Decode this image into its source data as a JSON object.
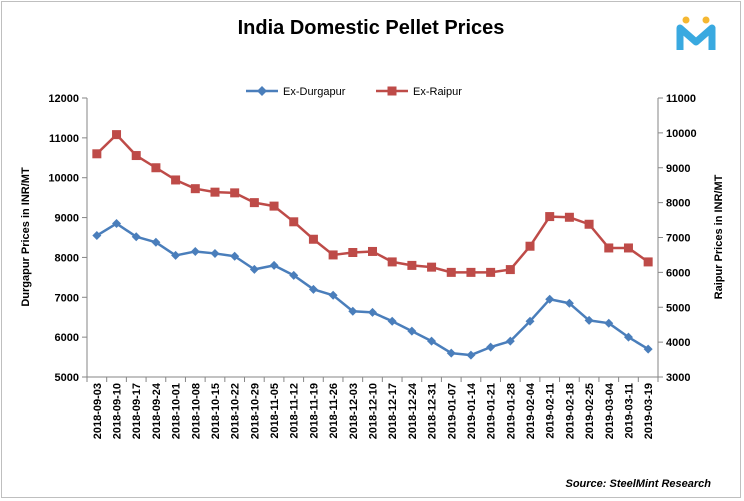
{
  "chart_data": {
    "type": "line",
    "title": "India Domestic Pellet Prices",
    "x": [
      "2018-09-03",
      "2018-09-10",
      "2018-09-17",
      "2018-09-24",
      "2018-10-01",
      "2018-10-08",
      "2018-10-15",
      "2018-10-22",
      "2018-10-29",
      "2018-11-05",
      "2018-11-12",
      "2018-11-19",
      "2018-11-26",
      "2018-12-03",
      "2018-12-10",
      "2018-12-17",
      "2018-12-24",
      "2018-12-31",
      "2019-01-07",
      "2019-01-14",
      "2019-01-21",
      "2019-01-28",
      "2019-02-04",
      "2019-02-11",
      "2019-02-18",
      "2019-02-25",
      "2019-03-04",
      "2019-03-11",
      "2019-03-19"
    ],
    "series": [
      {
        "name": "Ex-Durgapur",
        "axis": "left",
        "color": "#4a7ebb",
        "marker": "diamond",
        "values": [
          8550,
          8850,
          8520,
          8380,
          8050,
          8150,
          8100,
          8030,
          7700,
          7800,
          7550,
          7200,
          7050,
          6650,
          6620,
          6400,
          6150,
          5900,
          5600,
          5550,
          5750,
          5900,
          6400,
          6950,
          6850,
          6420,
          6350,
          6000,
          5700
        ]
      },
      {
        "name": "Ex-Raipur",
        "axis": "right",
        "color": "#be4b48",
        "marker": "square",
        "values": [
          9400,
          9950,
          9350,
          9000,
          8650,
          8400,
          8300,
          8280,
          8000,
          7900,
          7450,
          6950,
          6500,
          6570,
          6600,
          6300,
          6200,
          6150,
          6000,
          6000,
          6000,
          6080,
          6750,
          7600,
          7580,
          7380,
          6700,
          6700,
          6300
        ]
      }
    ],
    "ylabel": "Durgapur Prices in INR/MT",
    "ylabel_right": "Raipur Prices in INR/MT",
    "ylim": [
      5000,
      12000
    ],
    "yticks": [
      5000,
      6000,
      7000,
      8000,
      9000,
      10000,
      11000,
      12000
    ],
    "ylim_right": [
      3000,
      11000
    ],
    "yticks_right": [
      3000,
      4000,
      5000,
      6000,
      7000,
      8000,
      9000,
      10000,
      11000
    ],
    "grid": false,
    "legend": "top-center",
    "source": "Source: SteelMint Research"
  },
  "logo": {
    "name": "steelmint-logo-icon",
    "letter": "M",
    "colors": [
      "#39a9e0",
      "#f5b731"
    ]
  }
}
